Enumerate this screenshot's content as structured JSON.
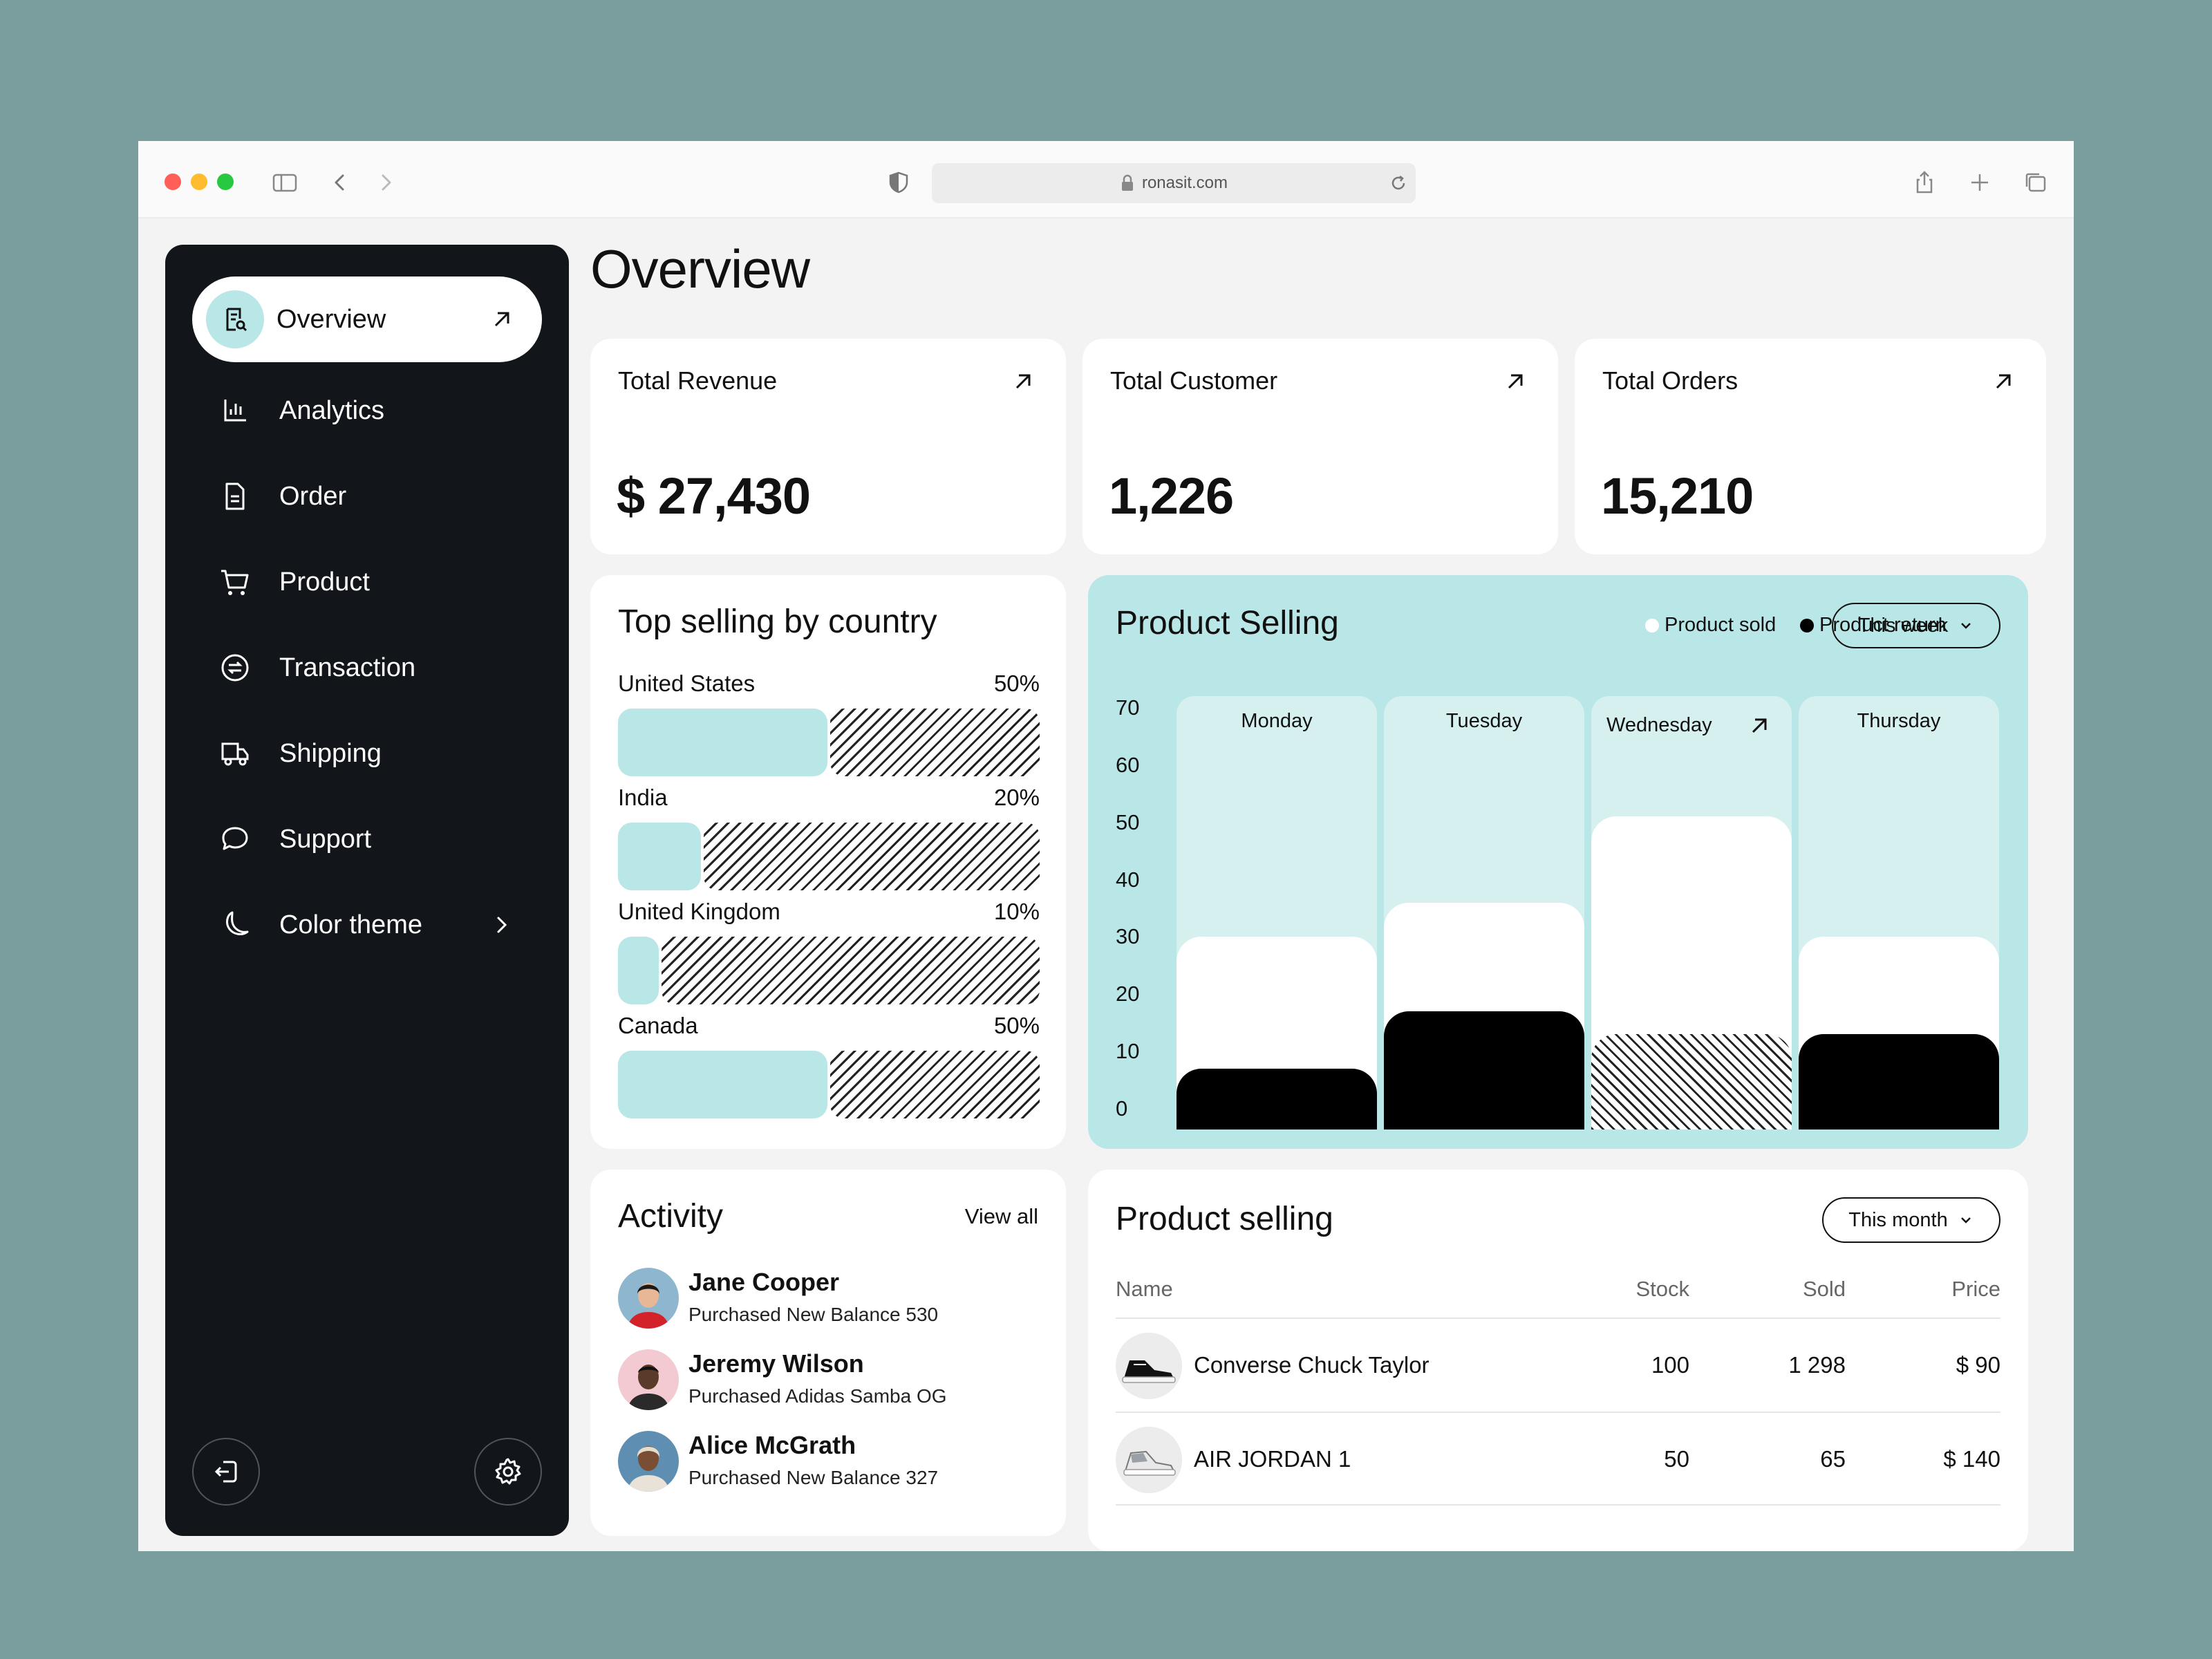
{
  "browser": {
    "url": "ronasit.com"
  },
  "sidebar": {
    "items": [
      {
        "label": "Overview",
        "icon": "overview-search-icon",
        "active": true
      },
      {
        "label": "Analytics",
        "icon": "analytics-icon"
      },
      {
        "label": "Order",
        "icon": "order-document-icon"
      },
      {
        "label": "Product",
        "icon": "cart-icon"
      },
      {
        "label": "Transaction",
        "icon": "transaction-icon"
      },
      {
        "label": "Shipping",
        "icon": "truck-icon"
      },
      {
        "label": "Support",
        "icon": "chat-bubble-icon"
      },
      {
        "label": "Color theme",
        "icon": "moon-icon"
      }
    ],
    "bottom": {
      "logout_icon": "logout-icon",
      "settings_icon": "gear-icon"
    }
  },
  "main": {
    "title": "Overview",
    "stats": [
      {
        "label": "Total Revenue",
        "value": "$ 27,430"
      },
      {
        "label": "Total Customer",
        "value": "1,226"
      },
      {
        "label": "Total Orders",
        "value": "15,210"
      }
    ],
    "top_selling": {
      "title": "Top selling by country",
      "countries": [
        {
          "name": "United States",
          "percent": "50%",
          "value": 50
        },
        {
          "name": "India",
          "percent": "20%",
          "value": 20
        },
        {
          "name": "United Kingdom",
          "percent": "10%",
          "value": 10
        },
        {
          "name": "Canada",
          "percent": "50%",
          "value": 50
        }
      ]
    },
    "product_selling_chart": {
      "title": "Product Selling",
      "legend": [
        {
          "label": "Product sold",
          "color": "#ffffff"
        },
        {
          "label": "Product return",
          "color": "#000000"
        }
      ],
      "period": "This week"
    },
    "activity": {
      "title": "Activity",
      "view_all": "View all",
      "items": [
        {
          "name": "Jane Cooper",
          "desc": "Purchased New Balance 530"
        },
        {
          "name": "Jeremy Wilson",
          "desc": "Purchased Adidas Samba OG"
        },
        {
          "name": "Alice McGrath",
          "desc": "Purchased New Balance 327"
        }
      ]
    },
    "product_table": {
      "title": "Product selling",
      "period": "This month",
      "columns": [
        "Name",
        "Stock",
        "Sold",
        "Price"
      ],
      "rows": [
        {
          "name": "Converse Chuck Taylor",
          "stock": "100",
          "sold": "1 298",
          "price": "$ 90"
        },
        {
          "name": "AIR JORDAN 1",
          "stock": "50",
          "sold": "65",
          "price": "$ 140"
        }
      ]
    }
  },
  "chart_data": {
    "type": "bar",
    "title": "Product Selling",
    "categories": [
      "Monday",
      "Tuesday",
      "Wednesday",
      "Thursday"
    ],
    "series": [
      {
        "name": "Product sold",
        "values": [
          30,
          36,
          51,
          30
        ]
      },
      {
        "name": "Product return",
        "values": [
          7,
          17,
          13,
          13
        ]
      }
    ],
    "yticks": [
      "70",
      "60",
      "50",
      "40",
      "30",
      "20",
      "10",
      "0"
    ],
    "ylim": [
      0,
      70
    ],
    "legend": "top-right",
    "grid": false,
    "colors": {
      "sold": "#ffffff",
      "return": "#000000",
      "background": "#b9e6e6"
    }
  }
}
